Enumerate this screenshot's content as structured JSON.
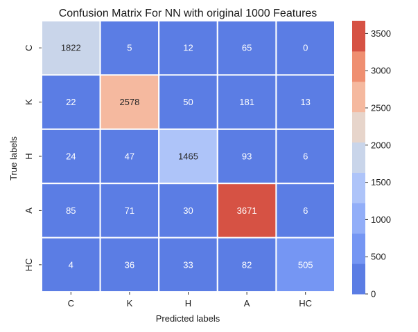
{
  "chart_data": {
    "type": "heatmap",
    "title": "Confusion Matrix For NN with original 1000 Features",
    "xlabel": "Predicted labels",
    "ylabel": "True labels",
    "x_categories": [
      "C",
      "K",
      "H",
      "A",
      "HC"
    ],
    "y_categories": [
      "C",
      "K",
      "H",
      "A",
      "HC"
    ],
    "values": [
      [
        1822,
        5,
        12,
        65,
        0
      ],
      [
        22,
        2578,
        50,
        181,
        13
      ],
      [
        24,
        47,
        1465,
        93,
        6
      ],
      [
        85,
        71,
        30,
        3671,
        6
      ],
      [
        4,
        36,
        33,
        82,
        505
      ]
    ],
    "colorbar": {
      "min": 0,
      "max": 3671,
      "ticks": [
        0,
        500,
        1000,
        1500,
        2000,
        2500,
        3000,
        3500
      ],
      "colors": [
        "#5b7de4",
        "#7596f3",
        "#92aef8",
        "#aec4f9",
        "#c9d5ea",
        "#e7d5cb",
        "#f5b99f",
        "#ef8f71",
        "#d65244"
      ]
    },
    "annotations": true,
    "grid_lines_between_cells": true,
    "legend": "colorbar-right"
  }
}
